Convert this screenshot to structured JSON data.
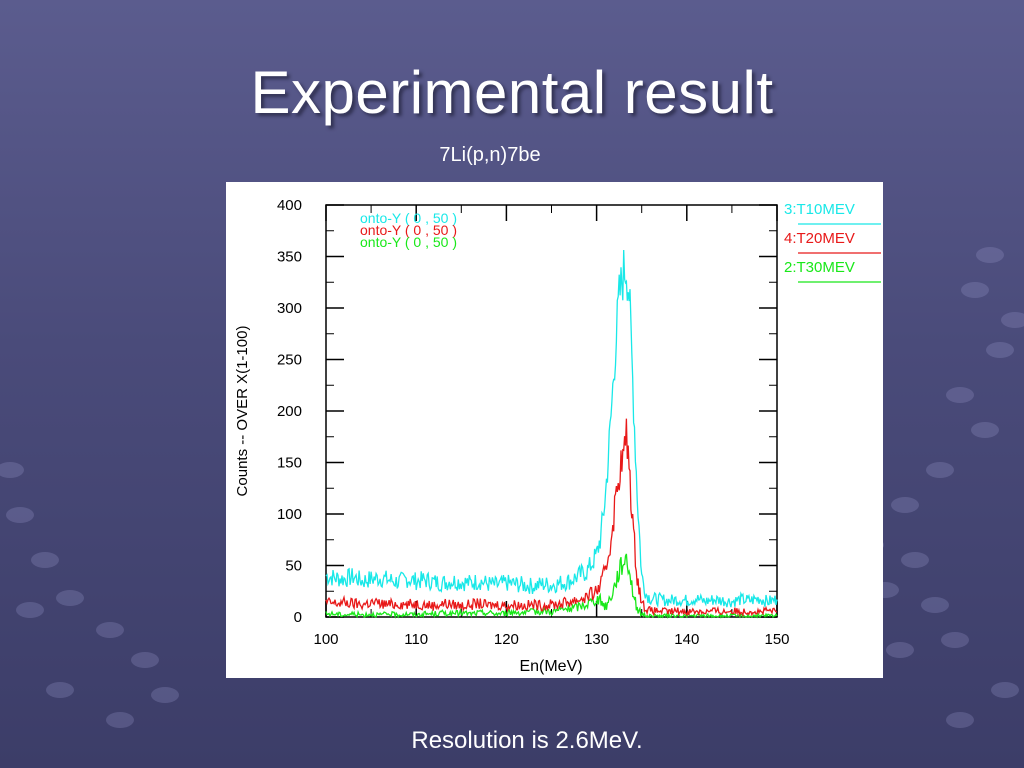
{
  "slide": {
    "title": "Experimental result",
    "subtitle": "7Li(p,n)7be",
    "footer": "Resolution is 2.6MeV."
  },
  "colors": {
    "background": "#4e4f80",
    "series": [
      "#19e8e8",
      "#e81919",
      "#19e819"
    ]
  },
  "chart_data": {
    "type": "line",
    "xlabel": "En(MeV)",
    "ylabel": "Counts -- OVER X(1-100)",
    "xlim": [
      100,
      150
    ],
    "ylim": [
      0,
      400
    ],
    "xticks": [
      100,
      110,
      120,
      130,
      140,
      150
    ],
    "yticks": [
      0,
      50,
      100,
      150,
      200,
      250,
      300,
      350,
      400
    ],
    "grid": false,
    "legend_placement": "right",
    "inner_labels": [
      "onto-Y ( 0 , 50 )",
      "onto-Y ( 0 , 50 )",
      "onto-Y ( 0 , 50 )"
    ],
    "series": [
      {
        "name": "3:T10MEV",
        "color": "#19e8e8",
        "x": [
          100,
          101,
          102,
          103,
          104,
          105,
          106,
          107,
          108,
          109,
          110,
          111,
          112,
          113,
          114,
          115,
          116,
          117,
          118,
          119,
          120,
          121,
          122,
          123,
          124,
          125,
          126,
          127,
          128,
          129,
          130,
          130.5,
          131,
          131.5,
          132,
          132.5,
          133,
          133.3,
          133.6,
          134,
          134.5,
          135,
          135.5,
          136,
          137,
          138,
          139,
          140,
          141,
          142,
          143,
          144,
          145,
          146,
          147,
          148,
          149,
          150
        ],
        "values": [
          40,
          38,
          37,
          39,
          35,
          37,
          38,
          36,
          34,
          37,
          35,
          36,
          34,
          33,
          35,
          34,
          33,
          35,
          32,
          31,
          33,
          32,
          31,
          30,
          32,
          31,
          33,
          35,
          40,
          45,
          60,
          80,
          120,
          180,
          250,
          310,
          335,
          340,
          315,
          230,
          120,
          40,
          22,
          18,
          17,
          16,
          17,
          16,
          18,
          15,
          17,
          16,
          15,
          17,
          16,
          18,
          15,
          17
        ]
      },
      {
        "name": "4:T20MEV",
        "color": "#e81919",
        "x": [
          100,
          101,
          102,
          103,
          104,
          105,
          106,
          107,
          108,
          109,
          110,
          111,
          112,
          113,
          114,
          115,
          116,
          117,
          118,
          119,
          120,
          121,
          122,
          123,
          124,
          125,
          126,
          127,
          128,
          129,
          130,
          130.5,
          131,
          131.5,
          132,
          132.5,
          133,
          133.3,
          133.6,
          134,
          134.5,
          135,
          135.5,
          136,
          137,
          138,
          139,
          140,
          141,
          142,
          143,
          144,
          145,
          146,
          147,
          148,
          149,
          150
        ],
        "values": [
          14,
          13,
          14,
          13,
          12,
          14,
          13,
          12,
          13,
          12,
          13,
          12,
          11,
          13,
          12,
          11,
          12,
          13,
          11,
          12,
          11,
          12,
          11,
          12,
          11,
          12,
          13,
          15,
          17,
          20,
          25,
          32,
          45,
          70,
          105,
          140,
          158,
          175,
          150,
          90,
          40,
          14,
          8,
          6,
          6,
          5,
          6,
          5,
          6,
          5,
          6,
          5,
          6,
          5,
          6,
          5,
          6,
          5
        ]
      },
      {
        "name": "2:T30MEV",
        "color": "#19e819",
        "x": [
          100,
          101,
          102,
          103,
          104,
          105,
          106,
          107,
          108,
          109,
          110,
          111,
          112,
          113,
          114,
          115,
          116,
          117,
          118,
          119,
          120,
          121,
          122,
          123,
          124,
          125,
          126,
          127,
          128,
          129,
          130,
          130.5,
          131,
          131.5,
          132,
          132.5,
          133,
          133.3,
          133.6,
          134,
          134.5,
          135,
          135.5,
          136,
          137,
          138,
          139,
          140,
          141,
          142,
          143,
          144,
          145,
          146,
          147,
          148,
          149,
          150
        ],
        "values": [
          3,
          3,
          2,
          3,
          2,
          3,
          2,
          3,
          2,
          3,
          2,
          3,
          3,
          4,
          3,
          4,
          3,
          4,
          4,
          3,
          4,
          5,
          4,
          5,
          6,
          5,
          7,
          8,
          10,
          13,
          18,
          15,
          10,
          18,
          30,
          45,
          55,
          58,
          48,
          25,
          8,
          3,
          1,
          1,
          1,
          1,
          1,
          1,
          1,
          1,
          1,
          1,
          1,
          1,
          1,
          1,
          1,
          1
        ]
      }
    ]
  }
}
